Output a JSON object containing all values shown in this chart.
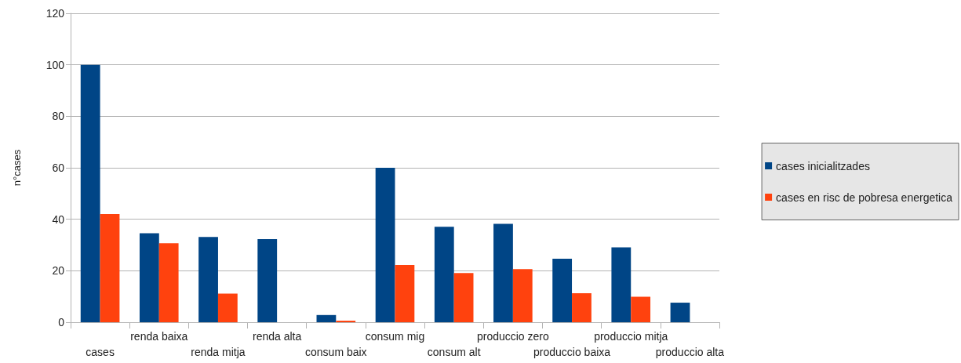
{
  "chart_data": {
    "type": "bar",
    "ylabel": "n°cases",
    "categories": [
      "cases",
      "renda baixa",
      "renda mitja",
      "renda alta",
      "consum baix",
      "consum mig",
      "consum alt",
      "produccio zero",
      "produccio baixa",
      "produccio mitja",
      "produccio alta"
    ],
    "series": [
      {
        "name": "cases inicialitzades",
        "color": "#004586",
        "values": [
          100,
          34.6,
          33.1,
          32.3,
          2.8,
          60,
          37.1,
          38.2,
          24.7,
          29.1,
          7.6
        ]
      },
      {
        "name": "cases en risc de pobresa energetica",
        "color": "#ff420e",
        "values": [
          42,
          30.7,
          11.1,
          0,
          0.6,
          22.2,
          19.1,
          20.6,
          11.3,
          9.9,
          0
        ]
      }
    ],
    "ylim": [
      0,
      120
    ],
    "yticks": [
      0,
      20,
      40,
      60,
      80,
      100,
      120
    ],
    "grid": "y",
    "legend": "right"
  }
}
